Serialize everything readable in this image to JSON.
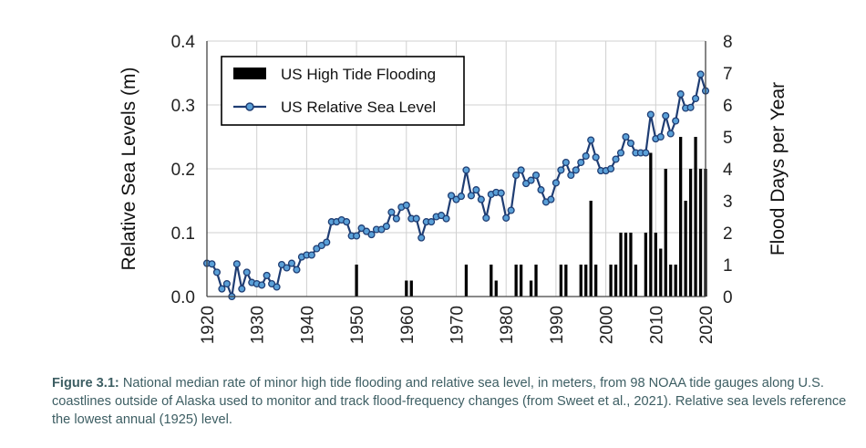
{
  "chart_data": {
    "type": "bar+line",
    "ylabel_left": "Relative Sea Levels (m)",
    "ylabel_right": "Flood Days per Year",
    "xlim": [
      1920,
      2020
    ],
    "ylim_left": [
      0,
      0.4
    ],
    "ylim_right": [
      0,
      8
    ],
    "x_ticks": [
      "1920",
      "1930",
      "1940",
      "1950",
      "1960",
      "1970",
      "1980",
      "1990",
      "2000",
      "2010",
      "2020"
    ],
    "y_ticks_left": [
      "0.0",
      "0.1",
      "0.2",
      "0.3",
      "0.4"
    ],
    "y_ticks_right": [
      "0",
      "1",
      "2",
      "3",
      "4",
      "5",
      "6",
      "7",
      "8"
    ],
    "legend": {
      "position": "top-left",
      "bar_label": "US High Tide Flooding",
      "line_label": "US Relative Sea Level"
    },
    "colors": {
      "bars": "#000000",
      "line": "#1f3d73",
      "marker_fill": "#5aa0d8",
      "grid": "#d0d0d0"
    },
    "grid": true,
    "series": [
      {
        "name": "US High Tide Flooding",
        "type": "bar",
        "axis": "right",
        "x": [
          1950,
          1960,
          1961,
          1972,
          1977,
          1978,
          1982,
          1983,
          1985,
          1986,
          1991,
          1992,
          1995,
          1996,
          1997,
          1998,
          2001,
          2002,
          2003,
          2004,
          2005,
          2006,
          2008,
          2009,
          2010,
          2011,
          2012,
          2013,
          2014,
          2015,
          2016,
          2017,
          2018,
          2019,
          2020
        ],
        "values": [
          1,
          0.5,
          0.5,
          1,
          1,
          0.5,
          1,
          1,
          0.5,
          1,
          1,
          1,
          1,
          1,
          3,
          1,
          1,
          1,
          2,
          2,
          2,
          1,
          2,
          4.5,
          2,
          1.5,
          4,
          1,
          1,
          5,
          3,
          4,
          5,
          4,
          4
        ]
      },
      {
        "name": "US Relative Sea Level",
        "type": "line",
        "axis": "left",
        "x": [
          1920,
          1921,
          1922,
          1923,
          1924,
          1925,
          1926,
          1927,
          1928,
          1929,
          1930,
          1931,
          1932,
          1933,
          1934,
          1935,
          1936,
          1937,
          1938,
          1939,
          1940,
          1941,
          1942,
          1943,
          1944,
          1945,
          1946,
          1947,
          1948,
          1949,
          1950,
          1951,
          1952,
          1953,
          1954,
          1955,
          1956,
          1957,
          1958,
          1959,
          1960,
          1961,
          1962,
          1963,
          1964,
          1965,
          1966,
          1967,
          1968,
          1969,
          1970,
          1971,
          1972,
          1973,
          1974,
          1975,
          1976,
          1977,
          1978,
          1979,
          1980,
          1981,
          1982,
          1983,
          1984,
          1985,
          1986,
          1987,
          1988,
          1989,
          1990,
          1991,
          1992,
          1993,
          1994,
          1995,
          1996,
          1997,
          1998,
          1999,
          2000,
          2001,
          2002,
          2003,
          2004,
          2005,
          2006,
          2007,
          2008,
          2009,
          2010,
          2011,
          2012,
          2013,
          2014,
          2015,
          2016,
          2017,
          2018,
          2019,
          2020
        ],
        "values": [
          0.052,
          0.051,
          0.038,
          0.012,
          0.02,
          0.0,
          0.051,
          0.012,
          0.038,
          0.022,
          0.02,
          0.018,
          0.033,
          0.02,
          0.015,
          0.05,
          0.045,
          0.052,
          0.042,
          0.062,
          0.065,
          0.065,
          0.075,
          0.08,
          0.085,
          0.117,
          0.117,
          0.12,
          0.117,
          0.095,
          0.095,
          0.107,
          0.102,
          0.097,
          0.105,
          0.105,
          0.11,
          0.132,
          0.122,
          0.14,
          0.143,
          0.122,
          0.122,
          0.092,
          0.117,
          0.117,
          0.125,
          0.127,
          0.122,
          0.158,
          0.152,
          0.157,
          0.198,
          0.158,
          0.167,
          0.152,
          0.123,
          0.16,
          0.163,
          0.162,
          0.123,
          0.135,
          0.19,
          0.198,
          0.177,
          0.182,
          0.19,
          0.167,
          0.148,
          0.152,
          0.178,
          0.198,
          0.21,
          0.19,
          0.198,
          0.21,
          0.22,
          0.245,
          0.218,
          0.197,
          0.197,
          0.2,
          0.215,
          0.225,
          0.25,
          0.24,
          0.225,
          0.225,
          0.225,
          0.285,
          0.247,
          0.25,
          0.283,
          0.255,
          0.275,
          0.317,
          0.295,
          0.296,
          0.31,
          0.348,
          0.322
        ]
      }
    ]
  },
  "caption": {
    "label": "Figure 3.1:",
    "text": " National median rate of minor high tide flooding and relative sea level, in meters, from 98 NOAA tide gauges along U.S. coastlines outside of Alaska used to monitor and track flood-frequency changes (from Sweet et al., 2021). Relative sea levels reference the lowest annual (1925) level."
  }
}
